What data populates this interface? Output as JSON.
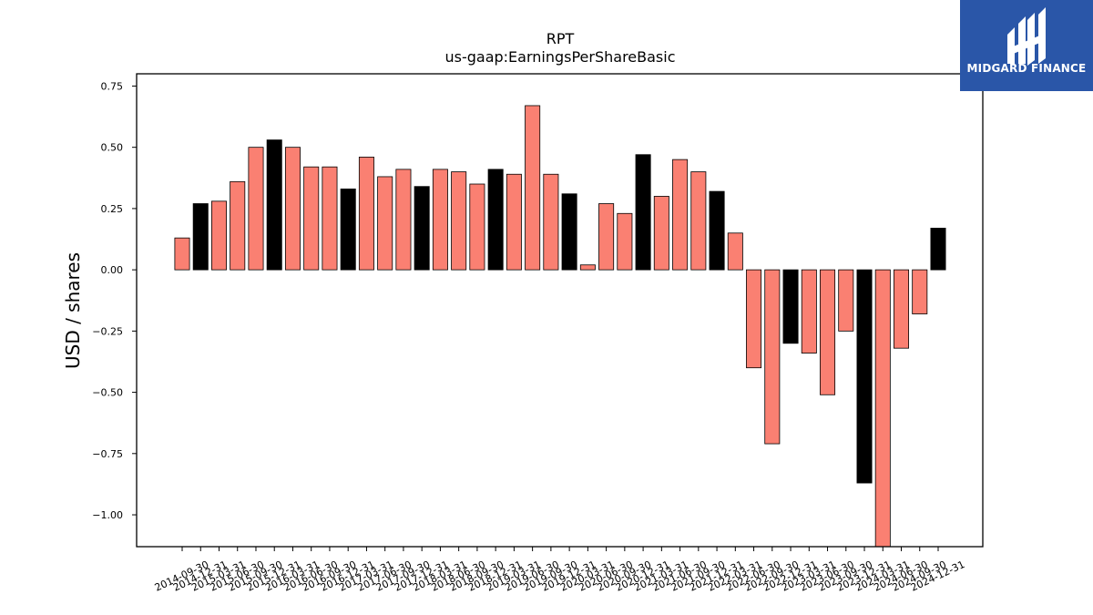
{
  "logo": {
    "text": "MIDGARD FINANCE",
    "icon": "midgard-logo-icon",
    "background": "#2a56a8"
  },
  "chart_data": {
    "type": "bar",
    "title": "RPT",
    "subtitle": "us-gaap:EarningsPerShareBasic",
    "xlabel": "",
    "ylabel": "USD / shares",
    "ylim": [
      -1.13,
      0.8
    ],
    "yticks": [
      0.75,
      0.5,
      0.25,
      0.0,
      -0.25,
      -0.5,
      -0.75,
      -1.0
    ],
    "ytick_labels": [
      "0.75",
      "0.50",
      "0.25",
      "0.00",
      "−0.25",
      "−0.50",
      "−0.75",
      "−1.00"
    ],
    "grid": false,
    "colors": {
      "quarterly": "#fa8072",
      "annual": "#000000",
      "edge": "#000000"
    },
    "categories": [
      "2014-09-30",
      "2014-12-31",
      "2015-03-31",
      "2015-06-30",
      "2015-09-30",
      "2015-12-31",
      "2016-03-31",
      "2016-06-30",
      "2016-09-30",
      "2016-12-31",
      "2017-03-31",
      "2017-06-30",
      "2017-09-30",
      "2017-12-31",
      "2018-03-31",
      "2018-06-30",
      "2018-09-30",
      "2018-12-31",
      "2019-03-31",
      "2019-06-30",
      "2019-09-30",
      "2019-12-31",
      "2020-03-31",
      "2020-06-30",
      "2020-09-30",
      "2020-12-31",
      "2021-03-31",
      "2021-06-30",
      "2021-09-30",
      "2021-12-31",
      "2022-03-31",
      "2022-06-30",
      "2022-09-30",
      "2022-12-31",
      "2023-03-31",
      "2023-06-30",
      "2023-09-30",
      "2023-12-31",
      "2024-03-31",
      "2024-06-30",
      "2024-09-30",
      "2024-12-31"
    ],
    "values": [
      0.13,
      0.27,
      0.28,
      0.36,
      0.5,
      0.53,
      0.5,
      0.42,
      0.42,
      0.33,
      0.46,
      0.38,
      0.41,
      0.34,
      0.41,
      0.4,
      0.35,
      0.41,
      0.39,
      0.67,
      0.39,
      0.31,
      0.02,
      0.27,
      0.23,
      0.47,
      0.3,
      0.45,
      0.4,
      0.32,
      0.15,
      -0.4,
      -0.71,
      -0.3,
      -0.34,
      -0.51,
      -0.25,
      -0.87,
      -1.13,
      -0.32,
      -0.18,
      0.17
    ],
    "is_annual": [
      false,
      true,
      false,
      false,
      false,
      true,
      false,
      false,
      false,
      true,
      false,
      false,
      false,
      true,
      false,
      false,
      false,
      true,
      false,
      false,
      false,
      true,
      false,
      false,
      false,
      true,
      false,
      false,
      false,
      true,
      false,
      false,
      false,
      true,
      false,
      false,
      false,
      true,
      false,
      false,
      false,
      true
    ]
  }
}
